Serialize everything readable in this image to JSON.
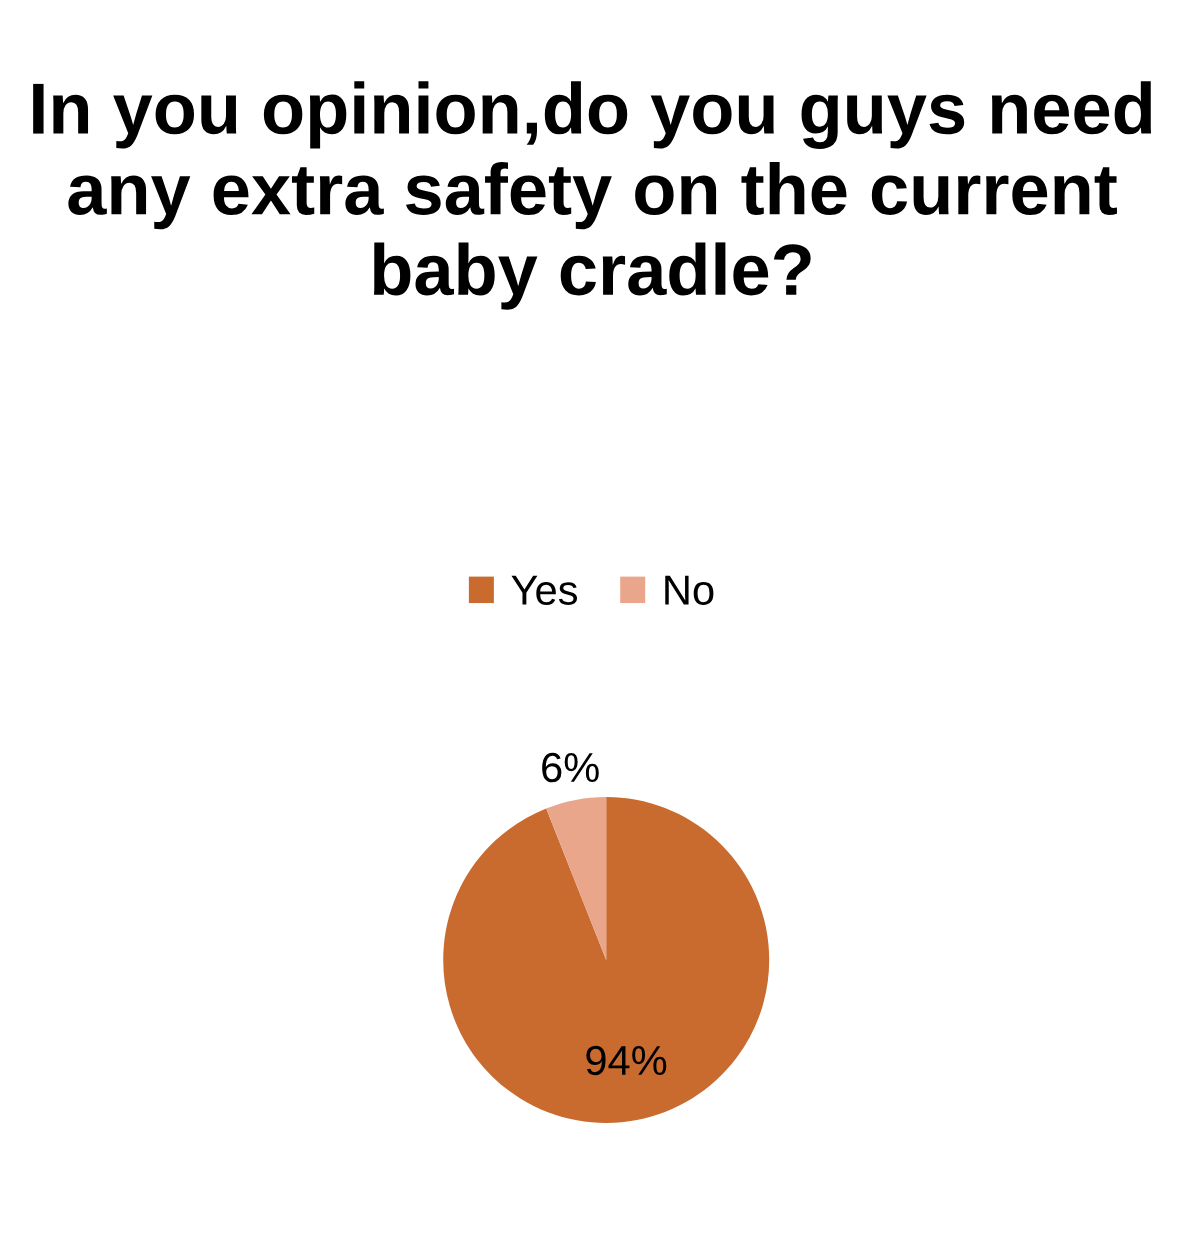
{
  "chart_data": {
    "type": "pie",
    "title": "In you opinion,do you guys need any extra safety on the current baby cradle?",
    "categories": [
      "Yes",
      "No"
    ],
    "values": [
      94,
      6
    ],
    "colors": [
      "#c96a2e",
      "#e9a68b"
    ],
    "value_labels": [
      "94%",
      "6%"
    ],
    "legend": "top"
  }
}
